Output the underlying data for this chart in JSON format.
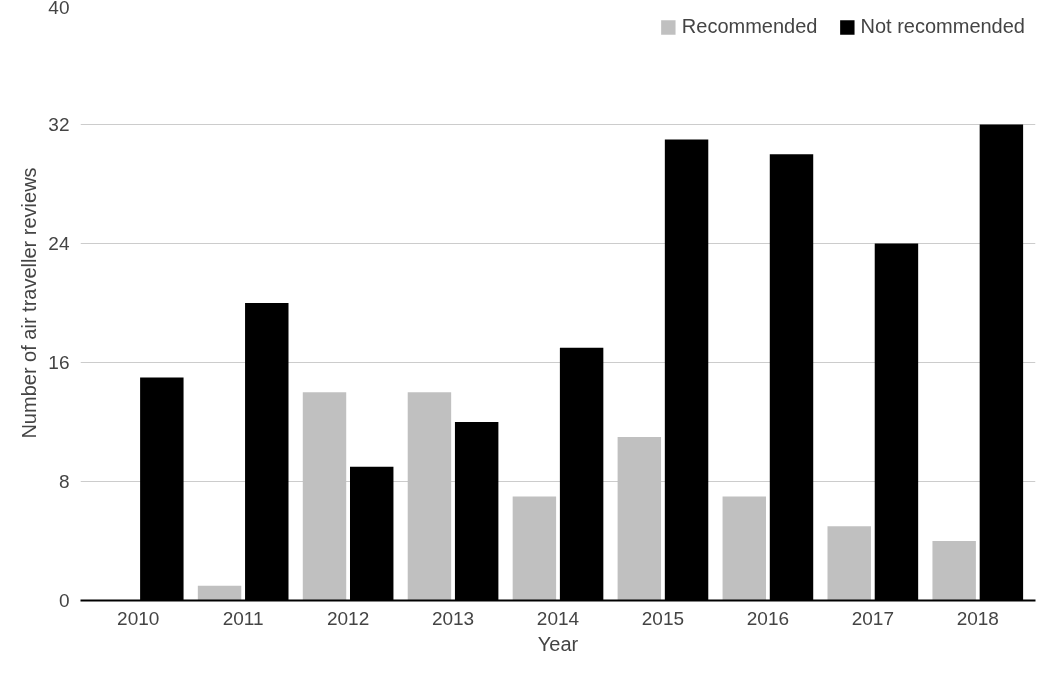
{
  "chart_data": {
    "type": "bar",
    "xlabel": "Year",
    "ylabel": "Number of air traveller reviews",
    "categories": [
      "2010",
      "2011",
      "2012",
      "2013",
      "2014",
      "2015",
      "2016",
      "2017",
      "2018"
    ],
    "series": [
      {
        "name": "Recommended",
        "color": "#c0c0c0",
        "values": [
          0,
          1,
          14,
          14,
          7,
          11,
          7,
          5,
          4
        ]
      },
      {
        "name": "Not recommended",
        "color": "#000000",
        "values": [
          15,
          20,
          9,
          12,
          17,
          31,
          30,
          24,
          32
        ]
      }
    ],
    "ylim": [
      0,
      40
    ],
    "yticks": [
      0,
      8,
      16,
      24,
      32,
      40
    ],
    "grid": "y",
    "legend": "top right"
  }
}
